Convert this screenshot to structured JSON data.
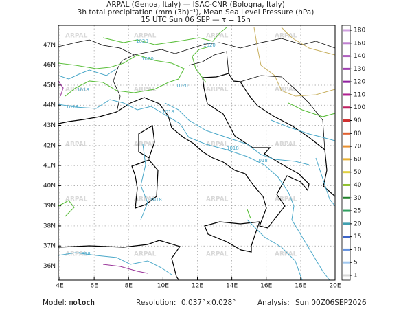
{
  "header": {
    "line1": "ARPAL (Genoa, Italy)  —  ISAC-CNR (Bologna, Italy)",
    "line2": "3h total precipitation (mm (3h)⁻¹), Mean Sea Level Pressure (hPa)",
    "line3": "15 UTC Sun 06 SEP  —  τ = 15h"
  },
  "map": {
    "lon_range": [
      3.92,
      20
    ],
    "lat_range": [
      35.3,
      47.97
    ],
    "lon_ticks": [
      {
        "value": 4,
        "label": "4E"
      },
      {
        "value": 6,
        "label": "6E"
      },
      {
        "value": 8,
        "label": "8E"
      },
      {
        "value": 10,
        "label": "10E"
      },
      {
        "value": 12,
        "label": "12E"
      },
      {
        "value": 14,
        "label": "14E"
      },
      {
        "value": 16,
        "label": "16E"
      },
      {
        "value": 18,
        "label": "18E"
      },
      {
        "value": 20,
        "label": "20E"
      }
    ],
    "lat_ticks": [
      {
        "value": 36,
        "label": "36N"
      },
      {
        "value": 37,
        "label": "37N"
      },
      {
        "value": 38,
        "label": "38N"
      },
      {
        "value": 39,
        "label": "39N"
      },
      {
        "value": 40,
        "label": "40N"
      },
      {
        "value": 41,
        "label": "41N"
      },
      {
        "value": 42,
        "label": "42N"
      },
      {
        "value": 43,
        "label": "43N"
      },
      {
        "value": 44,
        "label": "44N"
      },
      {
        "value": 45,
        "label": "45N"
      },
      {
        "value": 46,
        "label": "46N"
      },
      {
        "value": 47,
        "label": "47N"
      }
    ],
    "watermark": "ARPAL",
    "isobar_labels": [
      1020,
      1020,
      1020,
      1018,
      1018,
      1020,
      1018,
      1018,
      1018,
      1018,
      1018
    ]
  },
  "colorbar": {
    "levels": [
      1,
      5,
      10,
      15,
      20,
      25,
      30,
      40,
      50,
      60,
      70,
      80,
      90,
      100,
      110,
      120,
      130,
      140,
      160,
      180
    ],
    "colors": [
      "#d8d8d8",
      "#a0c8f0",
      "#6090e0",
      "#3c64c8",
      "#40a0b0",
      "#30a060",
      "#20802a",
      "#90c030",
      "#e0d040",
      "#e8b030",
      "#e89030",
      "#e06030",
      "#d03030",
      "#c02060",
      "#b02090",
      "#9020a0",
      "#a040b0",
      "#b060c0",
      "#c080d0",
      "#d0a0e0"
    ]
  },
  "footer": {
    "model_label": "Model:",
    "model": "moloch",
    "resolution_label": "Resolution:",
    "resolution": "0.037°×0.028°",
    "analysis_label": "Analysis:",
    "analysis": "Sun 00Z06SEP2026"
  }
}
